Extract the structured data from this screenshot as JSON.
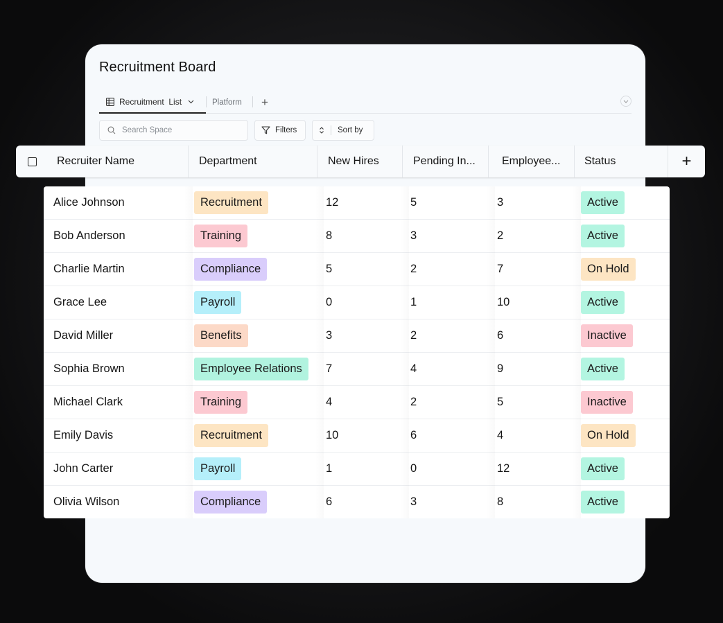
{
  "board": {
    "title": "Recruitment Board"
  },
  "tabs": {
    "active_label": "Recruitment  List",
    "second_label": "Platform",
    "add_label": "+"
  },
  "toolbar": {
    "search_placeholder": "Search Space",
    "filters_label": "Filters",
    "sort_label": "Sort by"
  },
  "table": {
    "columns": [
      "Recruiter Name",
      "Department",
      "New Hires",
      "Pending In...",
      "Employee...",
      "Status"
    ],
    "add_column_label": "+",
    "rows": [
      {
        "name": "Alice Johnson",
        "department": "Recruitment",
        "new_hires": "12",
        "pending": "5",
        "employees": "3",
        "status": "Active"
      },
      {
        "name": "Bob Anderson",
        "department": "Training",
        "new_hires": "8",
        "pending": "3",
        "employees": "2",
        "status": "Active"
      },
      {
        "name": "Charlie Martin",
        "department": "Compliance",
        "new_hires": "5",
        "pending": "2",
        "employees": "7",
        "status": "On Hold"
      },
      {
        "name": "Grace Lee",
        "department": "Payroll",
        "new_hires": "0",
        "pending": "1",
        "employees": "10",
        "status": "Active"
      },
      {
        "name": "David Miller",
        "department": "Benefits",
        "new_hires": "3",
        "pending": "2",
        "employees": "6",
        "status": "Inactive"
      },
      {
        "name": "Sophia Brown",
        "department": "Employee Relations",
        "new_hires": "7",
        "pending": "4",
        "employees": "9",
        "status": "Active"
      },
      {
        "name": "Michael Clark",
        "department": "Training",
        "new_hires": "4",
        "pending": "2",
        "employees": "5",
        "status": "Inactive"
      },
      {
        "name": "Emily Davis",
        "department": "Recruitment",
        "new_hires": "10",
        "pending": "6",
        "employees": "4",
        "status": "On Hold"
      },
      {
        "name": "John Carter",
        "department": "Payroll",
        "new_hires": "1",
        "pending": "0",
        "employees": "12",
        "status": "Active"
      },
      {
        "name": "Olivia Wilson",
        "department": "Compliance",
        "new_hires": "6",
        "pending": "3",
        "employees": "8",
        "status": "Active"
      }
    ]
  },
  "colors": {
    "department": {
      "Recruitment": "#fde5c3",
      "Training": "#fcc9d1",
      "Compliance": "#d9cdfb",
      "Payroll": "#b5effa",
      "Benefits": "#fcd9c7",
      "Employee Relations": "#b1f3df"
    },
    "status": {
      "Active": "#b3f5e1",
      "On Hold": "#fde5c3",
      "Inactive": "#fcc9d1"
    }
  }
}
